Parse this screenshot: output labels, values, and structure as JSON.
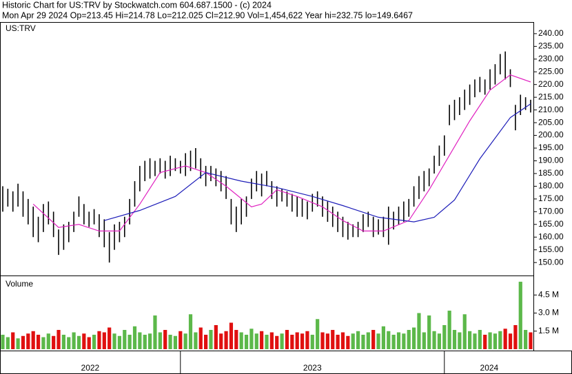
{
  "chart_data": {
    "type": "ohlc",
    "title": "Historic Chart for US:TRV by Stockwatch.com 604.687.1500 - (c) 2024",
    "subtitle": "Mon Apr 29 2024   Op=213.45  Hi=214.78  Lo=212.025  Cl=212.90  Vol=1,454,622  Year hi=232.75  lo=149.6467",
    "symbol_label": "US:TRV",
    "color": "#000000",
    "xlim": [
      0,
      104
    ],
    "xticks": [
      35,
      87
    ],
    "year_labels": [
      "2022",
      "2023",
      "2024"
    ],
    "ylim": [
      144.9,
      244.3
    ],
    "yticks": [
      {
        "value": 150,
        "label": "150.00"
      },
      {
        "value": 155,
        "label": "155.00"
      },
      {
        "value": 160,
        "label": "160.00"
      },
      {
        "value": 165,
        "label": "165.00"
      },
      {
        "value": 170,
        "label": "170.00"
      },
      {
        "value": 175,
        "label": "175.00"
      },
      {
        "value": 180,
        "label": "180.00"
      },
      {
        "value": 185,
        "label": "185.00"
      },
      {
        "value": 190,
        "label": "190.00"
      },
      {
        "value": 195,
        "label": "195.00"
      },
      {
        "value": 200,
        "label": "200.00"
      },
      {
        "value": 205,
        "label": "205.00"
      },
      {
        "value": 210,
        "label": "210.00"
      },
      {
        "value": 215,
        "label": "215.00"
      },
      {
        "value": 220,
        "label": "220.00"
      },
      {
        "value": 225,
        "label": "225.00"
      },
      {
        "value": 230,
        "label": "230.00"
      },
      {
        "value": 235,
        "label": "235.00"
      },
      {
        "value": 240,
        "label": "240.00"
      }
    ],
    "high": [
      180,
      179,
      178,
      181,
      178,
      175,
      172,
      168,
      173,
      174,
      170,
      163,
      165,
      166,
      170,
      176,
      173,
      170,
      171,
      169,
      167,
      162,
      165,
      166,
      168,
      175,
      182,
      188,
      190,
      191,
      190,
      191,
      190,
      192,
      191,
      190,
      193,
      194,
      195,
      191,
      188,
      188,
      187,
      186,
      184,
      175,
      172,
      175,
      176,
      183,
      186,
      185,
      186,
      182,
      180,
      179,
      178,
      177,
      176,
      175,
      174,
      177,
      178,
      176,
      174,
      172,
      170,
      168,
      166,
      165,
      166,
      169,
      170,
      168,
      167,
      168,
      172,
      170,
      172,
      174,
      175,
      180,
      184,
      186,
      187,
      192,
      196,
      200,
      212,
      214,
      215,
      218,
      220,
      222,
      223,
      222,
      226,
      228,
      232,
      233,
      226,
      212,
      216,
      215,
      214
    ],
    "low": [
      170,
      172,
      170,
      172,
      168,
      165,
      160,
      158,
      162,
      165,
      160,
      153,
      155,
      158,
      162,
      168,
      165,
      164,
      165,
      160,
      156,
      150,
      155,
      158,
      160,
      165,
      172,
      178,
      182,
      183,
      184,
      185,
      183,
      184,
      186,
      185,
      184,
      186,
      187,
      183,
      180,
      182,
      180,
      178,
      175,
      165,
      162,
      165,
      168,
      175,
      178,
      176,
      180,
      175,
      172,
      174,
      172,
      170,
      168,
      168,
      167,
      170,
      172,
      168,
      166,
      164,
      162,
      160,
      159,
      160,
      160,
      162,
      164,
      160,
      161,
      160,
      157,
      163,
      165,
      166,
      168,
      172,
      175,
      178,
      180,
      185,
      188,
      192,
      204,
      206,
      208,
      210,
      212,
      215,
      217,
      216,
      218,
      220,
      224,
      222,
      219,
      202,
      208,
      210,
      209
    ],
    "moving_averages": [
      {
        "color": "#e020c0",
        "x": [
          6,
          11,
          15,
          19,
          23,
          27,
          31,
          36,
          40,
          44,
          49,
          51,
          54,
          58,
          63,
          67,
          71,
          75,
          80,
          84,
          88,
          92,
          96,
          100,
          104
        ],
        "values": [
          173,
          163.8,
          165,
          162.4,
          162.4,
          173,
          185.4,
          188,
          185.4,
          180,
          171.9,
          173,
          178.6,
          176,
          171.9,
          166.5,
          162.4,
          162.4,
          166.5,
          178.6,
          192.2,
          205.7,
          217.8,
          223.8,
          221
        ]
      },
      {
        "color": "#1c1cb8",
        "x": [
          20,
          27,
          34,
          40,
          47,
          54,
          61,
          67,
          74,
          81,
          85,
          89,
          94,
          100,
          104
        ],
        "values": [
          166.5,
          170.5,
          176,
          185.4,
          182,
          179.5,
          176,
          172.4,
          167.8,
          166,
          167.8,
          174.6,
          190.8,
          207,
          212.4
        ]
      }
    ],
    "volume": {
      "label": "Volume",
      "up_color": "#5cb84a",
      "down_color": "#e01010",
      "ylim": [
        0,
        6.06
      ],
      "yticks": [
        {
          "value": 1.5,
          "label": "1.5 M"
        },
        {
          "value": 3.0,
          "label": "3.0 M"
        },
        {
          "value": 4.5,
          "label": "4.5 M"
        }
      ],
      "values": [
        1.2,
        1.0,
        1.4,
        0.9,
        1.1,
        1.3,
        1.5,
        1.2,
        1.0,
        1.3,
        1.1,
        1.6,
        1.2,
        1.0,
        1.4,
        1.1,
        1.3,
        1.0,
        1.2,
        1.5,
        1.4,
        1.8,
        1.3,
        1.1,
        1.6,
        1.2,
        1.9,
        1.4,
        1.2,
        1.3,
        2.8,
        1.4,
        1.6,
        1.2,
        1.1,
        1.5,
        1.3,
        2.9,
        1.4,
        1.8,
        1.2,
        1.6,
        2.0,
        1.3,
        1.5,
        2.2,
        1.6,
        1.4,
        1.2,
        1.7,
        1.3,
        1.5,
        1.2,
        1.4,
        1.1,
        1.3,
        1.6,
        1.2,
        1.4,
        1.3,
        1.5,
        1.2,
        2.5,
        1.4,
        1.3,
        1.6,
        1.2,
        1.4,
        1.1,
        1.3,
        1.5,
        1.2,
        1.4,
        1.6,
        1.3,
        1.9,
        1.5,
        1.2,
        1.4,
        1.3,
        1.6,
        1.8,
        3.0,
        1.4,
        2.8,
        1.5,
        1.3,
        2.0,
        3.2,
        1.6,
        1.4,
        2.9,
        1.5,
        1.3,
        1.6,
        1.2,
        1.4,
        1.3,
        1.5,
        1.7,
        1.3,
        2.0,
        5.6,
        1.6,
        1.4
      ]
    }
  }
}
